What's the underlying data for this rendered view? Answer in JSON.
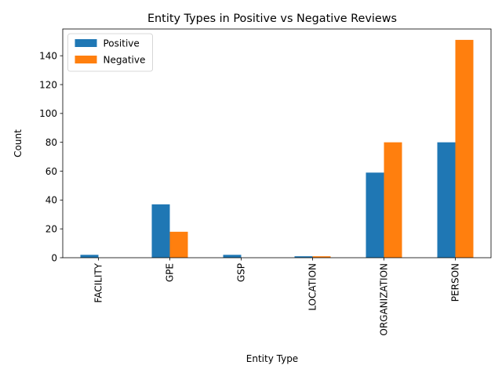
{
  "chart_data": {
    "type": "bar",
    "title": "Entity Types in Positive vs Negative Reviews",
    "xlabel": "Entity Type",
    "ylabel": "Count",
    "categories": [
      "FACILITY",
      "GPE",
      "GSP",
      "LOCATION",
      "ORGANIZATION",
      "PERSON"
    ],
    "series": [
      {
        "name": "Positive",
        "values": [
          2,
          37,
          2,
          1,
          59,
          80
        ],
        "color": "#1f77b4"
      },
      {
        "name": "Negative",
        "values": [
          0,
          18,
          0,
          1,
          80,
          151
        ],
        "color": "#ff7f0e"
      }
    ],
    "ylim": [
      0,
      158.55
    ],
    "yticks": [
      0,
      20,
      40,
      60,
      80,
      100,
      120,
      140
    ],
    "legend_position": "top-left",
    "grid": false
  }
}
